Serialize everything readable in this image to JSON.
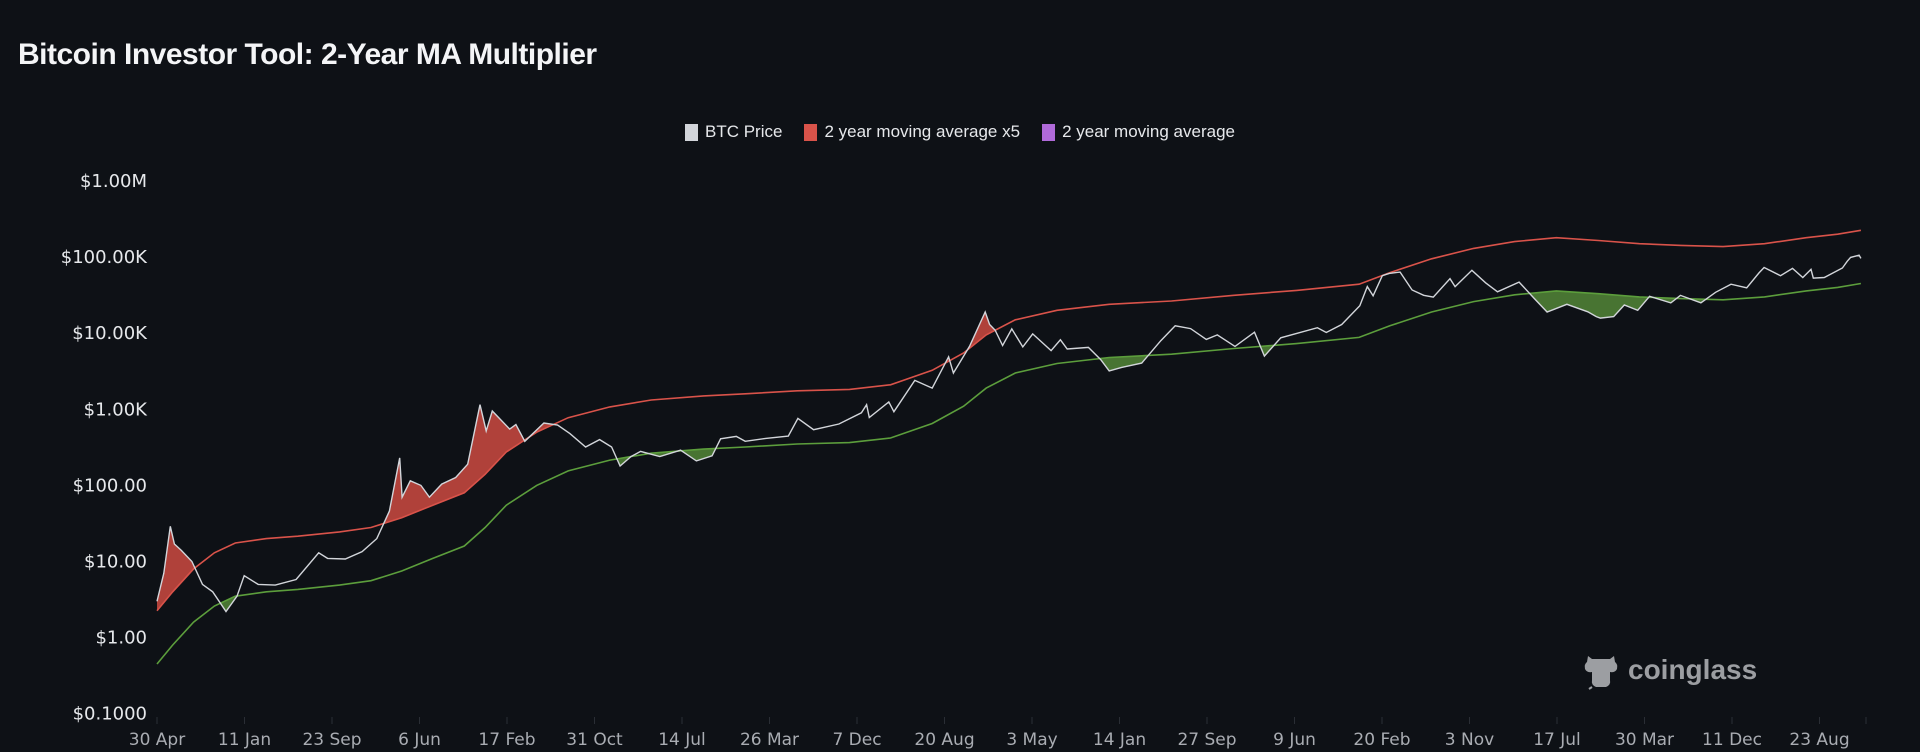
{
  "chart_data": {
    "type": "line",
    "title": "Bitcoin Investor Tool: 2-Year MA Multiplier",
    "y_scale": "log",
    "ylim": [
      0.1,
      1000000
    ],
    "grid": false,
    "legend_placement": "top-center",
    "colors": {
      "background": "#0e1116",
      "price": "#d2d5da",
      "ma_x5": "#d9534a",
      "ma_legend": "#b06ad9",
      "ma_line": "#5c9e3c",
      "red_fill": "#c2473e",
      "green_fill": "#4f7f35"
    },
    "legend": [
      {
        "label": "BTC Price",
        "color": "#d2d5da"
      },
      {
        "label": "2 year moving average x5",
        "color": "#d9534a"
      },
      {
        "label": "2 year moving average",
        "color": "#b06ad9"
      }
    ],
    "y_ticks": [
      {
        "value": 1000000,
        "label": "$1.00M"
      },
      {
        "value": 100000,
        "label": "$100.00K"
      },
      {
        "value": 10000,
        "label": "$10.00K"
      },
      {
        "value": 1000,
        "label": "$1.00K"
      },
      {
        "value": 100,
        "label": "$100.00"
      },
      {
        "value": 10,
        "label": "$10.00"
      },
      {
        "value": 1,
        "label": "$1.00"
      },
      {
        "value": 0.1,
        "label": "$0.1000"
      }
    ],
    "x_ticks": [
      {
        "date": "2011-04-30",
        "label": "30 Apr"
      },
      {
        "date": "2012-01-11",
        "label": "11 Jan"
      },
      {
        "date": "2012-09-23",
        "label": "23 Sep"
      },
      {
        "date": "2013-06-06",
        "label": "6 Jun"
      },
      {
        "date": "2014-02-17",
        "label": "17 Feb"
      },
      {
        "date": "2014-10-31",
        "label": "31 Oct"
      },
      {
        "date": "2015-07-14",
        "label": "14 Jul"
      },
      {
        "date": "2016-03-26",
        "label": "26 Mar"
      },
      {
        "date": "2016-12-07",
        "label": "7 Dec"
      },
      {
        "date": "2017-08-20",
        "label": "20 Aug"
      },
      {
        "date": "2018-05-03",
        "label": "3 May"
      },
      {
        "date": "2019-01-14",
        "label": "14 Jan"
      },
      {
        "date": "2019-09-27",
        "label": "27 Sep"
      },
      {
        "date": "2020-06-09",
        "label": "9 Jun"
      },
      {
        "date": "2021-02-20",
        "label": "20 Feb"
      },
      {
        "date": "2021-11-03",
        "label": "3 Nov"
      },
      {
        "date": "2022-07-17",
        "label": "17 Jul"
      },
      {
        "date": "2023-03-30",
        "label": "30 Mar"
      },
      {
        "date": "2023-12-11",
        "label": "11 Dec"
      },
      {
        "date": "2024-08-23",
        "label": "23 Aug"
      }
    ],
    "btc_price": [
      [
        "2011-04-30",
        3.0
      ],
      [
        "2011-05-20",
        7
      ],
      [
        "2011-06-08",
        29
      ],
      [
        "2011-06-20",
        17
      ],
      [
        "2011-07-10",
        14
      ],
      [
        "2011-08-10",
        10
      ],
      [
        "2011-09-10",
        5
      ],
      [
        "2011-10-10",
        4
      ],
      [
        "2011-11-18",
        2.2
      ],
      [
        "2011-12-20",
        3.5
      ],
      [
        "2012-01-10",
        6.5
      ],
      [
        "2012-02-20",
        5
      ],
      [
        "2012-04-10",
        4.9
      ],
      [
        "2012-06-10",
        5.8
      ],
      [
        "2012-08-15",
        13
      ],
      [
        "2012-09-10",
        11
      ],
      [
        "2012-11-01",
        10.8
      ],
      [
        "2012-12-20",
        13.5
      ],
      [
        "2013-02-01",
        20
      ],
      [
        "2013-03-10",
        46
      ],
      [
        "2013-04-09",
        230
      ],
      [
        "2013-04-16",
        70
      ],
      [
        "2013-05-10",
        115
      ],
      [
        "2013-06-10",
        100
      ],
      [
        "2013-07-05",
        70
      ],
      [
        "2013-08-10",
        104
      ],
      [
        "2013-09-20",
        127
      ],
      [
        "2013-10-25",
        190
      ],
      [
        "2013-11-30",
        1150
      ],
      [
        "2013-12-18",
        520
      ],
      [
        "2014-01-05",
        950
      ],
      [
        "2014-02-25",
        550
      ],
      [
        "2014-03-15",
        630
      ],
      [
        "2014-04-10",
        380
      ],
      [
        "2014-06-05",
        660
      ],
      [
        "2014-07-15",
        620
      ],
      [
        "2014-08-20",
        480
      ],
      [
        "2014-10-05",
        320
      ],
      [
        "2014-11-15",
        400
      ],
      [
        "2014-12-20",
        320
      ],
      [
        "2015-01-14",
        180
      ],
      [
        "2015-02-15",
        240
      ],
      [
        "2015-03-15",
        280
      ],
      [
        "2015-05-10",
        240
      ],
      [
        "2015-07-10",
        290
      ],
      [
        "2015-08-25",
        210
      ],
      [
        "2015-10-10",
        245
      ],
      [
        "2015-11-04",
        410
      ],
      [
        "2015-12-20",
        440
      ],
      [
        "2016-01-15",
        380
      ],
      [
        "2016-03-15",
        415
      ],
      [
        "2016-05-20",
        445
      ],
      [
        "2016-06-17",
        760
      ],
      [
        "2016-08-02",
        540
      ],
      [
        "2016-10-15",
        640
      ],
      [
        "2016-12-20",
        900
      ],
      [
        "2017-01-04",
        1150
      ],
      [
        "2017-01-12",
        780
      ],
      [
        "2017-03-10",
        1250
      ],
      [
        "2017-03-25",
        930
      ],
      [
        "2017-05-25",
        2400
      ],
      [
        "2017-07-15",
        1900
      ],
      [
        "2017-09-01",
        4900
      ],
      [
        "2017-09-15",
        3000
      ],
      [
        "2017-11-01",
        6700
      ],
      [
        "2017-12-17",
        19000
      ],
      [
        "2017-12-30",
        13000
      ],
      [
        "2018-01-15",
        11000
      ],
      [
        "2018-02-06",
        6900
      ],
      [
        "2018-03-05",
        11400
      ],
      [
        "2018-04-06",
        6600
      ],
      [
        "2018-05-05",
        9800
      ],
      [
        "2018-06-28",
        5900
      ],
      [
        "2018-07-25",
        8200
      ],
      [
        "2018-08-14",
        6200
      ],
      [
        "2018-10-15",
        6500
      ],
      [
        "2018-11-20",
        4500
      ],
      [
        "2018-12-15",
        3200
      ],
      [
        "2019-01-20",
        3550
      ],
      [
        "2019-03-20",
        4050
      ],
      [
        "2019-05-15",
        8000
      ],
      [
        "2019-06-26",
        12500
      ],
      [
        "2019-08-10",
        11500
      ],
      [
        "2019-09-25",
        8300
      ],
      [
        "2019-10-27",
        9500
      ],
      [
        "2019-12-18",
        6700
      ],
      [
        "2020-02-13",
        10300
      ],
      [
        "2020-03-13",
        5000
      ],
      [
        "2020-04-30",
        8700
      ],
      [
        "2020-06-10",
        9800
      ],
      [
        "2020-08-15",
        11800
      ],
      [
        "2020-09-10",
        10200
      ],
      [
        "2020-10-25",
        13000
      ],
      [
        "2020-12-17",
        23000
      ],
      [
        "2021-01-08",
        41000
      ],
      [
        "2021-01-25",
        31000
      ],
      [
        "2021-02-21",
        57000
      ],
      [
        "2021-03-13",
        61000
      ],
      [
        "2021-04-14",
        63500
      ],
      [
        "2021-05-19",
        37000
      ],
      [
        "2021-06-22",
        31500
      ],
      [
        "2021-07-20",
        29800
      ],
      [
        "2021-09-07",
        52000
      ],
      [
        "2021-09-22",
        41000
      ],
      [
        "2021-11-10",
        67000
      ],
      [
        "2021-12-20",
        46000
      ],
      [
        "2022-01-24",
        35000
      ],
      [
        "2022-03-28",
        47000
      ],
      [
        "2022-05-12",
        28500
      ],
      [
        "2022-06-18",
        19000
      ],
      [
        "2022-08-15",
        24000
      ],
      [
        "2022-10-15",
        19100
      ],
      [
        "2022-11-09",
        16500
      ],
      [
        "2022-11-21",
        15800
      ],
      [
        "2022-12-30",
        16500
      ],
      [
        "2023-01-30",
        23500
      ],
      [
        "2023-03-10",
        20000
      ],
      [
        "2023-04-14",
        30500
      ],
      [
        "2023-06-15",
        25000
      ],
      [
        "2023-07-13",
        31400
      ],
      [
        "2023-09-11",
        25100
      ],
      [
        "2023-10-24",
        34500
      ],
      [
        "2023-12-08",
        44000
      ],
      [
        "2024-01-23",
        39500
      ],
      [
        "2024-02-28",
        62000
      ],
      [
        "2024-03-14",
        73000
      ],
      [
        "2024-05-01",
        57000
      ],
      [
        "2024-06-05",
        71000
      ],
      [
        "2024-07-05",
        54000
      ],
      [
        "2024-07-29",
        69000
      ],
      [
        "2024-08-05",
        53000
      ],
      [
        "2024-09-06",
        53900
      ],
      [
        "2024-10-29",
        72000
      ],
      [
        "2024-11-12",
        88000
      ],
      [
        "2024-11-22",
        99000
      ],
      [
        "2024-12-17",
        106000
      ],
      [
        "2024-12-22",
        96000
      ]
    ],
    "ma_2y": [
      [
        "2011-04-30",
        0.45
      ],
      [
        "2011-06-15",
        0.8
      ],
      [
        "2011-08-15",
        1.6
      ],
      [
        "2011-10-15",
        2.6
      ],
      [
        "2011-12-15",
        3.5
      ],
      [
        "2012-03-15",
        4.0
      ],
      [
        "2012-06-15",
        4.3
      ],
      [
        "2012-10-15",
        4.9
      ],
      [
        "2013-01-15",
        5.6
      ],
      [
        "2013-04-15",
        7.5
      ],
      [
        "2013-07-15",
        11
      ],
      [
        "2013-10-15",
        16
      ],
      [
        "2013-12-15",
        28
      ],
      [
        "2014-02-15",
        55
      ],
      [
        "2014-05-15",
        100
      ],
      [
        "2014-08-15",
        155
      ],
      [
        "2014-12-15",
        215
      ],
      [
        "2015-04-15",
        265
      ],
      [
        "2015-09-15",
        300
      ],
      [
        "2016-01-15",
        320
      ],
      [
        "2016-06-15",
        350
      ],
      [
        "2016-11-15",
        365
      ],
      [
        "2017-03-15",
        420
      ],
      [
        "2017-07-15",
        650
      ],
      [
        "2017-10-15",
        1100
      ],
      [
        "2017-12-20",
        1900
      ],
      [
        "2018-03-15",
        3000
      ],
      [
        "2018-07-15",
        4000
      ],
      [
        "2018-12-15",
        4800
      ],
      [
        "2019-06-15",
        5300
      ],
      [
        "2019-12-15",
        6300
      ],
      [
        "2020-06-15",
        7300
      ],
      [
        "2020-12-15",
        8800
      ],
      [
        "2021-03-15",
        12500
      ],
      [
        "2021-07-15",
        19000
      ],
      [
        "2021-11-15",
        26000
      ],
      [
        "2022-03-15",
        32000
      ],
      [
        "2022-07-15",
        36000
      ],
      [
        "2022-11-15",
        33000
      ],
      [
        "2023-03-15",
        30000
      ],
      [
        "2023-07-15",
        28500
      ],
      [
        "2023-11-15",
        27500
      ],
      [
        "2024-03-15",
        30000
      ],
      [
        "2024-07-15",
        36000
      ],
      [
        "2024-10-15",
        40000
      ],
      [
        "2024-12-22",
        45000
      ]
    ],
    "ma_2y_x5": [
      [
        "2011-04-30",
        2.25
      ],
      [
        "2011-06-15",
        4.0
      ],
      [
        "2011-08-15",
        8.0
      ],
      [
        "2011-10-15",
        13
      ],
      [
        "2011-12-15",
        17.5
      ],
      [
        "2012-03-15",
        20
      ],
      [
        "2012-06-15",
        21.5
      ],
      [
        "2012-10-15",
        24.5
      ],
      [
        "2013-01-15",
        28
      ],
      [
        "2013-04-15",
        37.5
      ],
      [
        "2013-07-15",
        55
      ],
      [
        "2013-10-15",
        80
      ],
      [
        "2013-12-15",
        140
      ],
      [
        "2014-02-15",
        275
      ],
      [
        "2014-05-15",
        500
      ],
      [
        "2014-08-15",
        775
      ],
      [
        "2014-12-15",
        1075
      ],
      [
        "2015-04-15",
        1325
      ],
      [
        "2015-09-15",
        1500
      ],
      [
        "2016-01-15",
        1600
      ],
      [
        "2016-06-15",
        1750
      ],
      [
        "2016-11-15",
        1825
      ],
      [
        "2017-03-15",
        2100
      ],
      [
        "2017-07-15",
        3250
      ],
      [
        "2017-10-15",
        5500
      ],
      [
        "2017-12-20",
        9500
      ],
      [
        "2018-03-15",
        15000
      ],
      [
        "2018-07-15",
        20000
      ],
      [
        "2018-12-15",
        24000
      ],
      [
        "2019-06-15",
        26500
      ],
      [
        "2019-12-15",
        31500
      ],
      [
        "2020-06-15",
        36500
      ],
      [
        "2020-12-15",
        44000
      ],
      [
        "2021-03-15",
        62500
      ],
      [
        "2021-07-15",
        95000
      ],
      [
        "2021-11-15",
        130000
      ],
      [
        "2022-03-15",
        160000
      ],
      [
        "2022-07-15",
        180000
      ],
      [
        "2022-11-15",
        165000
      ],
      [
        "2023-03-15",
        150000
      ],
      [
        "2023-07-15",
        142500
      ],
      [
        "2023-11-15",
        137500
      ],
      [
        "2024-03-15",
        150000
      ],
      [
        "2024-07-15",
        180000
      ],
      [
        "2024-10-15",
        200000
      ],
      [
        "2024-12-22",
        225000
      ]
    ]
  },
  "watermark": {
    "text": "coinglass"
  }
}
